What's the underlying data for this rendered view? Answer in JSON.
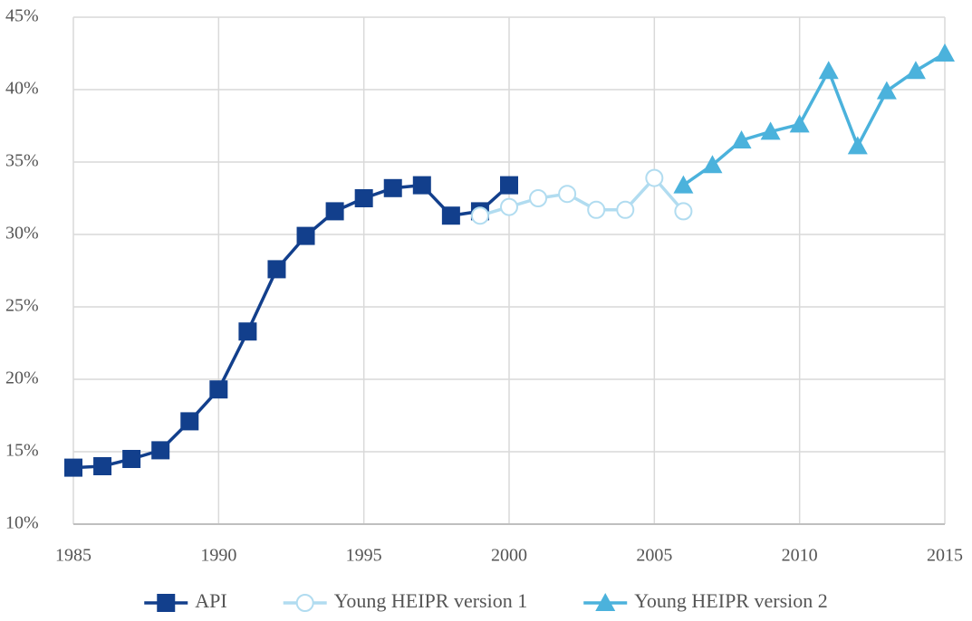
{
  "chart_data": {
    "type": "line",
    "x": [
      1985,
      1986,
      1987,
      1988,
      1989,
      1990,
      1991,
      1992,
      1993,
      1994,
      1995,
      1996,
      1997,
      1998,
      1999,
      2000,
      2001,
      2002,
      2003,
      2004,
      2005,
      2006,
      2007,
      2008,
      2009,
      2010,
      2011,
      2012,
      2013,
      2014,
      2015
    ],
    "series": [
      {
        "name": "API",
        "color": "#123f8c",
        "marker": "square",
        "values": [
          13.9,
          14.0,
          14.5,
          15.1,
          17.1,
          19.3,
          23.3,
          27.6,
          29.9,
          31.6,
          32.5,
          33.2,
          33.4,
          31.3,
          31.6,
          33.4,
          null,
          null,
          null,
          null,
          null,
          null,
          null,
          null,
          null,
          null,
          null,
          null,
          null,
          null,
          null
        ]
      },
      {
        "name": "Young HEIPR version 1",
        "color": "#b1dcf0",
        "marker": "circle",
        "values": [
          null,
          null,
          null,
          null,
          null,
          null,
          null,
          null,
          null,
          null,
          null,
          null,
          null,
          null,
          31.3,
          31.9,
          32.5,
          32.8,
          31.7,
          31.7,
          33.9,
          31.6,
          null,
          null,
          null,
          null,
          null,
          null,
          null,
          null,
          null
        ]
      },
      {
        "name": "Young HEIPR version 2",
        "color": "#4bb2dc",
        "marker": "triangle",
        "values": [
          null,
          null,
          null,
          null,
          null,
          null,
          null,
          null,
          null,
          null,
          null,
          null,
          null,
          null,
          null,
          null,
          null,
          null,
          null,
          null,
          null,
          33.4,
          34.8,
          36.5,
          37.1,
          37.6,
          41.3,
          36.1,
          39.9,
          41.3,
          42.5
        ]
      }
    ],
    "xlim": [
      1985,
      2015
    ],
    "xticks": [
      1985,
      1990,
      1995,
      2000,
      2005,
      2010,
      2015
    ],
    "ylim": [
      10,
      45
    ],
    "yticks": [
      {
        "value": 10,
        "label": "10%"
      },
      {
        "value": 15,
        "label": "15%"
      },
      {
        "value": 20,
        "label": "20%"
      },
      {
        "value": 25,
        "label": "25%"
      },
      {
        "value": 30,
        "label": "30%"
      },
      {
        "value": 35,
        "label": "35%"
      },
      {
        "value": 40,
        "label": "40%"
      },
      {
        "value": 45,
        "label": "45%"
      }
    ],
    "grid": true,
    "legend": "bottom"
  }
}
